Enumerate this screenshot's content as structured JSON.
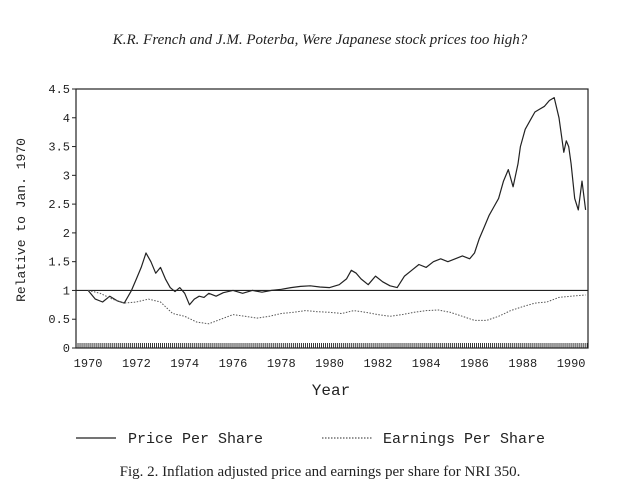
{
  "page": {
    "header": "K.R. French and J.M. Poterba, Were Japanese stock prices too high?",
    "caption": "Fig. 2. Inflation adjusted price and earnings per share for NRI 350."
  },
  "chart_data": {
    "type": "line",
    "title": "",
    "xlabel": "Year",
    "ylabel": "Relative to Jan. 1970",
    "xlim": [
      1969.5,
      1990.7
    ],
    "ylim": [
      0,
      4.5
    ],
    "x_ticks": [
      "1970",
      "1972",
      "1974",
      "1976",
      "1978",
      "1980",
      "1982",
      "1984",
      "1986",
      "1988",
      "1990"
    ],
    "y_ticks": [
      "0",
      "0.5",
      "1",
      "1.5",
      "2",
      "2.5",
      "3",
      "3.5",
      "4",
      "4.5"
    ],
    "reference_line": 1,
    "legend_position": "bottom",
    "series": [
      {
        "name": "Price Per Share",
        "style": "solid",
        "color": "#222222",
        "x": [
          1970.0,
          1970.3,
          1970.6,
          1970.9,
          1971.2,
          1971.5,
          1971.8,
          1972.0,
          1972.2,
          1972.4,
          1972.6,
          1972.8,
          1973.0,
          1973.2,
          1973.4,
          1973.6,
          1973.8,
          1974.0,
          1974.2,
          1974.4,
          1974.6,
          1974.8,
          1975.0,
          1975.3,
          1975.6,
          1976.0,
          1976.4,
          1976.8,
          1977.2,
          1977.6,
          1978.0,
          1978.4,
          1978.8,
          1979.2,
          1979.6,
          1980.0,
          1980.4,
          1980.7,
          1980.9,
          1981.1,
          1981.3,
          1981.6,
          1981.9,
          1982.2,
          1982.5,
          1982.8,
          1983.1,
          1983.4,
          1983.7,
          1984.0,
          1984.3,
          1984.6,
          1984.9,
          1985.2,
          1985.5,
          1985.8,
          1986.0,
          1986.2,
          1986.4,
          1986.6,
          1986.8,
          1987.0,
          1987.2,
          1987.4,
          1987.6,
          1987.8,
          1987.9,
          1988.1,
          1988.3,
          1988.5,
          1988.7,
          1988.9,
          1989.1,
          1989.3,
          1989.5,
          1989.7,
          1989.8,
          1989.9,
          1990.0,
          1990.15,
          1990.3,
          1990.45,
          1990.6
        ],
        "values": [
          1.0,
          0.85,
          0.8,
          0.9,
          0.82,
          0.78,
          1.0,
          1.2,
          1.4,
          1.65,
          1.5,
          1.3,
          1.4,
          1.2,
          1.05,
          0.98,
          1.05,
          0.95,
          0.75,
          0.85,
          0.9,
          0.88,
          0.95,
          0.9,
          0.96,
          1.0,
          0.95,
          1.0,
          0.97,
          1.0,
          1.02,
          1.05,
          1.07,
          1.08,
          1.06,
          1.05,
          1.1,
          1.2,
          1.35,
          1.3,
          1.2,
          1.1,
          1.25,
          1.15,
          1.08,
          1.05,
          1.25,
          1.35,
          1.45,
          1.4,
          1.5,
          1.55,
          1.5,
          1.55,
          1.6,
          1.55,
          1.65,
          1.9,
          2.1,
          2.3,
          2.45,
          2.6,
          2.9,
          3.1,
          2.8,
          3.2,
          3.5,
          3.8,
          3.95,
          4.1,
          4.15,
          4.2,
          4.3,
          4.35,
          4.0,
          3.4,
          3.6,
          3.5,
          3.2,
          2.6,
          2.4,
          2.9,
          2.4
        ]
      },
      {
        "name": "Earnings Per Share",
        "style": "dotted",
        "color": "#555555",
        "x": [
          1970.0,
          1970.5,
          1971.0,
          1971.5,
          1972.0,
          1972.5,
          1973.0,
          1973.5,
          1974.0,
          1974.5,
          1975.0,
          1975.5,
          1976.0,
          1976.5,
          1977.0,
          1977.5,
          1978.0,
          1978.5,
          1979.0,
          1979.5,
          1980.0,
          1980.5,
          1981.0,
          1981.5,
          1982.0,
          1982.5,
          1983.0,
          1983.5,
          1984.0,
          1984.5,
          1985.0,
          1985.5,
          1986.0,
          1986.5,
          1987.0,
          1987.5,
          1988.0,
          1988.5,
          1989.0,
          1989.5,
          1990.0,
          1990.6
        ],
        "values": [
          1.0,
          0.95,
          0.85,
          0.78,
          0.8,
          0.85,
          0.8,
          0.6,
          0.55,
          0.45,
          0.42,
          0.5,
          0.58,
          0.55,
          0.52,
          0.55,
          0.6,
          0.62,
          0.65,
          0.63,
          0.62,
          0.6,
          0.65,
          0.62,
          0.58,
          0.55,
          0.58,
          0.62,
          0.65,
          0.66,
          0.62,
          0.55,
          0.48,
          0.48,
          0.55,
          0.65,
          0.72,
          0.78,
          0.8,
          0.88,
          0.9,
          0.92
        ]
      }
    ]
  }
}
